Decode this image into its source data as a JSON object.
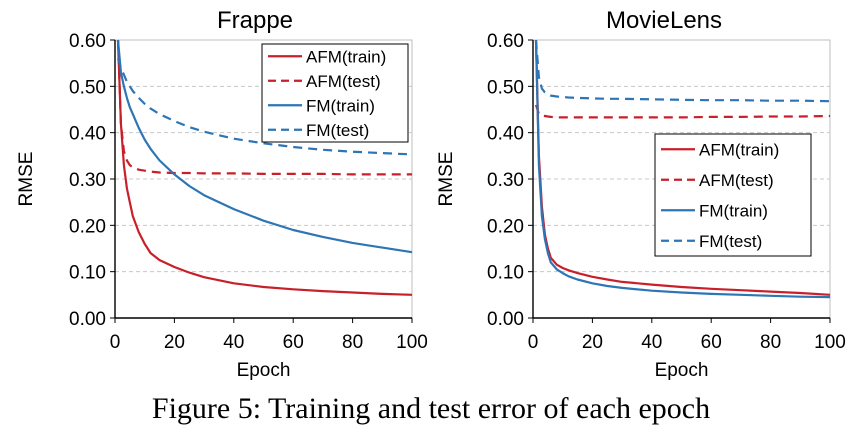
{
  "caption": "Figure 5: Training and test error of each epoch",
  "colors": {
    "afm": "#c8202a",
    "fm": "#2e75b6",
    "grid": "#c8c8c8",
    "axis": "#000000"
  },
  "chart_data": [
    {
      "type": "line",
      "title": "Frappe",
      "xlabel": "Epoch",
      "ylabel": "RMSE",
      "xlim": [
        0,
        100
      ],
      "ylim": [
        0,
        0.6
      ],
      "xticks": [
        "0",
        "20",
        "40",
        "60",
        "80",
        "100"
      ],
      "yticks": [
        "0.00",
        "0.10",
        "0.20",
        "0.30",
        "0.40",
        "0.50",
        "0.60"
      ],
      "grid": "horizontal dashed",
      "legend_position": "top-right",
      "x": [
        1,
        2,
        3,
        4,
        5,
        6,
        8,
        10,
        12,
        15,
        20,
        25,
        30,
        40,
        50,
        60,
        70,
        80,
        90,
        100
      ],
      "series": [
        {
          "name": "AFM(train)",
          "color": "#c8202a",
          "dash": "solid",
          "values": [
            0.6,
            0.42,
            0.33,
            0.28,
            0.25,
            0.22,
            0.185,
            0.16,
            0.14,
            0.125,
            0.11,
            0.098,
            0.088,
            0.075,
            0.067,
            0.062,
            0.058,
            0.055,
            0.052,
            0.05
          ]
        },
        {
          "name": "AFM(test)",
          "color": "#c8202a",
          "dash": "dashed",
          "values": [
            0.6,
            0.42,
            0.36,
            0.34,
            0.33,
            0.325,
            0.32,
            0.318,
            0.316,
            0.314,
            0.313,
            0.313,
            0.312,
            0.312,
            0.311,
            0.311,
            0.311,
            0.31,
            0.31,
            0.31
          ]
        },
        {
          "name": "FM(train)",
          "color": "#2e75b6",
          "dash": "solid",
          "values": [
            0.6,
            0.53,
            0.5,
            0.475,
            0.455,
            0.44,
            0.41,
            0.385,
            0.365,
            0.34,
            0.31,
            0.285,
            0.265,
            0.235,
            0.21,
            0.19,
            0.175,
            0.162,
            0.152,
            0.142
          ]
        },
        {
          "name": "FM(test)",
          "color": "#2e75b6",
          "dash": "dashed",
          "values": [
            0.56,
            0.54,
            0.525,
            0.51,
            0.5,
            0.49,
            0.475,
            0.462,
            0.452,
            0.44,
            0.425,
            0.412,
            0.402,
            0.387,
            0.377,
            0.369,
            0.363,
            0.359,
            0.356,
            0.353
          ]
        }
      ]
    },
    {
      "type": "line",
      "title": "MovieLens",
      "xlabel": "Epoch",
      "ylabel": "RMSE",
      "xlim": [
        0,
        100
      ],
      "ylim": [
        0,
        0.6
      ],
      "xticks": [
        "0",
        "20",
        "40",
        "60",
        "80",
        "100"
      ],
      "yticks": [
        "0.00",
        "0.10",
        "0.20",
        "0.30",
        "0.40",
        "0.50",
        "0.60"
      ],
      "grid": "horizontal dashed",
      "legend_position": "center-right",
      "x": [
        1,
        2,
        3,
        4,
        5,
        6,
        8,
        10,
        12,
        15,
        20,
        25,
        30,
        40,
        50,
        60,
        70,
        80,
        90,
        100
      ],
      "series": [
        {
          "name": "AFM(train)",
          "color": "#c8202a",
          "dash": "solid",
          "values": [
            0.6,
            0.35,
            0.24,
            0.18,
            0.15,
            0.13,
            0.115,
            0.108,
            0.103,
            0.097,
            0.089,
            0.083,
            0.078,
            0.072,
            0.067,
            0.063,
            0.06,
            0.057,
            0.054,
            0.05
          ]
        },
        {
          "name": "AFM(test)",
          "color": "#c8202a",
          "dash": "dashed",
          "values": [
            0.46,
            0.44,
            0.437,
            0.436,
            0.435,
            0.434,
            0.433,
            0.433,
            0.433,
            0.433,
            0.433,
            0.433,
            0.433,
            0.433,
            0.433,
            0.434,
            0.434,
            0.435,
            0.435,
            0.436
          ]
        },
        {
          "name": "FM(train)",
          "color": "#2e75b6",
          "dash": "solid",
          "values": [
            0.6,
            0.33,
            0.22,
            0.17,
            0.14,
            0.12,
            0.105,
            0.097,
            0.09,
            0.083,
            0.075,
            0.069,
            0.065,
            0.059,
            0.055,
            0.052,
            0.05,
            0.048,
            0.046,
            0.045
          ]
        },
        {
          "name": "FM(test)",
          "color": "#2e75b6",
          "dash": "dashed",
          "values": [
            0.6,
            0.52,
            0.495,
            0.487,
            0.483,
            0.48,
            0.478,
            0.477,
            0.476,
            0.475,
            0.474,
            0.473,
            0.473,
            0.472,
            0.471,
            0.47,
            0.47,
            0.469,
            0.469,
            0.468
          ]
        }
      ]
    }
  ]
}
